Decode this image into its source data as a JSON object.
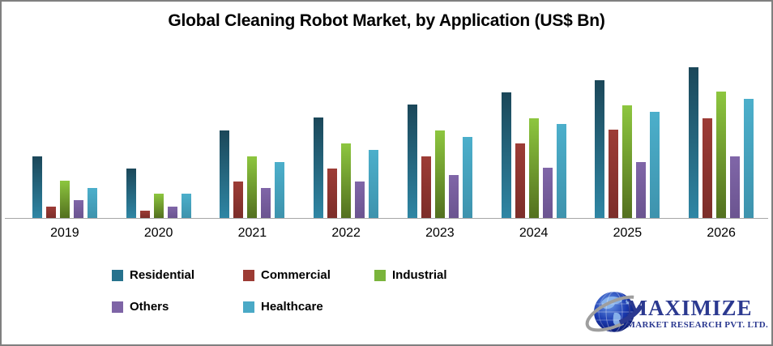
{
  "title": "Global Cleaning Robot Market, by Application (US$ Bn)",
  "chart_data": {
    "type": "bar",
    "title": "Global Cleaning Robot Market, by Application (US$ Bn)",
    "xlabel": "",
    "ylabel": "",
    "value_unit": "relative bar height in px (no y-axis scale shown in image)",
    "grid": false,
    "legend_position": "bottom",
    "categories": [
      "2019",
      "2020",
      "2021",
      "2022",
      "2023",
      "2024",
      "2025",
      "2026"
    ],
    "series": [
      {
        "name": "Residential",
        "legend_color": "#26728d",
        "color_top": "#1b4759",
        "color_bottom": "#2f86a4",
        "values": [
          76,
          61,
          108,
          124,
          140,
          155,
          170,
          186
        ]
      },
      {
        "name": "Commercial",
        "legend_color": "#9c3b34",
        "color_top": "#9d3c36",
        "color_bottom": "#7c2d29",
        "values": [
          14,
          9,
          45,
          61,
          76,
          92,
          109,
          123
        ]
      },
      {
        "name": "Industrial",
        "legend_color": "#7ab43c",
        "color_top": "#8dc63f",
        "color_bottom": "#53701f",
        "values": [
          46,
          30,
          76,
          92,
          108,
          123,
          139,
          156
        ]
      },
      {
        "name": "Others",
        "legend_color": "#7e64a6",
        "color_top": "#8066a8",
        "color_bottom": "#6b5490",
        "values": [
          22,
          14,
          37,
          45,
          53,
          62,
          69,
          76
        ]
      },
      {
        "name": "Healthcare",
        "legend_color": "#4aa9c6",
        "color_top": "#4cafcb",
        "color_bottom": "#3e93ad",
        "values": [
          37,
          30,
          69,
          84,
          100,
          116,
          131,
          147
        ]
      }
    ],
    "axis_line_color": "#a6a6a6"
  },
  "logo": {
    "icon": "globe-icon",
    "brand": "MAXIMIZE",
    "subtitle": "MARKET RESEARCH PVT. LTD.",
    "brand_color": "#2b3990"
  },
  "frame": {
    "border_color": "#7f7f7f"
  }
}
